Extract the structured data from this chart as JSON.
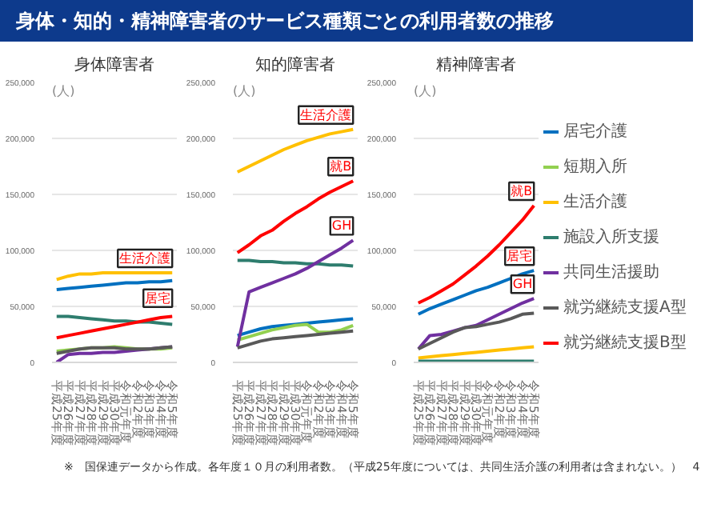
{
  "chart_data": [
    {
      "type": "line",
      "title": "身体障害者",
      "ylabel": "(人)",
      "categories": [
        "平成25年度",
        "平成26年度",
        "平成27年度",
        "平成28年度",
        "平成29年度",
        "平成30年度",
        "令和元年度",
        "令和2年度",
        "令和3年度",
        "令和4年度",
        "令和5年度"
      ],
      "ylim": [
        0,
        250000
      ],
      "yticks": [
        0,
        {
          "value": 50000,
          "label": "50,000"
        },
        {
          "value": 100000,
          "label": "100,000"
        },
        {
          "value": 150000,
          "label": "150,000"
        },
        {
          "value": 200000,
          "label": "200,000"
        },
        {
          "value": 250000,
          "label": "250,000"
        }
      ],
      "grid": "y",
      "series": [
        {
          "color": "#0070c0",
          "values": [
            65000,
            66000,
            67000,
            68000,
            69000,
            70000,
            71000,
            71000,
            72000,
            72000,
            73000
          ]
        },
        {
          "color": "#92d050",
          "values": [
            10000,
            11000,
            12000,
            13000,
            13000,
            14000,
            13000,
            12000,
            12000,
            12000,
            13000
          ]
        },
        {
          "color": "#ffc000",
          "values": [
            74000,
            77000,
            79000,
            79000,
            80000,
            80000,
            80000,
            80000,
            80000,
            80000,
            80000
          ]
        },
        {
          "color": "#2e7d6e",
          "values": [
            41000,
            41000,
            40000,
            39000,
            38000,
            37000,
            37000,
            36000,
            36000,
            35000,
            34000
          ]
        },
        {
          "color": "#7030a0",
          "values": [
            0,
            7000,
            8000,
            8000,
            9000,
            9000,
            10000,
            11000,
            12000,
            13000,
            14000
          ]
        },
        {
          "color": "#595959",
          "values": [
            8000,
            10000,
            12000,
            13000,
            13000,
            13000,
            12000,
            12000,
            12000,
            13000,
            14000
          ]
        },
        {
          "color": "#ff0000",
          "values": [
            22000,
            24000,
            26000,
            28000,
            30000,
            32000,
            34000,
            36000,
            38000,
            40000,
            41000
          ]
        }
      ],
      "annotations": [
        "身体・知的・精神障害者のサービス種類ごとの利用者数の推移",
        {
          "text": "生活介護",
          "x": "令和5年度",
          "y": 80000
        },
        {
          "text": "居宅",
          "x": "令和5年度",
          "y": 73000
        }
      ]
    },
    {
      "type": "line",
      "title": "知的障害者",
      "ylabel": "(人)",
      "categories": [
        "平成25年度",
        "平成26年度",
        "平成27年度",
        "平成28年度",
        "平成29年度",
        "平成30年度",
        "令和元年度",
        "令和2年度",
        "令和3年度",
        "令和4年度",
        "令和5年度"
      ],
      "ylim": [
        0,
        250000
      ],
      "yticks": [
        0,
        {
          "value": 50000,
          "label": "50,000"
        },
        {
          "value": 100000,
          "label": "100,000"
        },
        {
          "value": 150000,
          "label": "150,000"
        },
        {
          "value": 200000,
          "label": "200,000"
        },
        {
          "value": 250000,
          "label": "250,000"
        }
      ],
      "grid": "y",
      "series": [
        {
          "color": "#0070c0",
          "values": [
            24000,
            27000,
            30000,
            32000,
            33000,
            34000,
            35000,
            36000,
            37000,
            38000,
            39000
          ]
        },
        {
          "color": "#92d050",
          "values": [
            20000,
            23000,
            26000,
            29000,
            31000,
            33000,
            34000,
            27000,
            27000,
            29000,
            33000
          ]
        },
        {
          "color": "#ffc000",
          "values": [
            170000,
            175000,
            180000,
            185000,
            190000,
            194000,
            198000,
            201000,
            204000,
            206000,
            208000
          ]
        },
        {
          "color": "#2e7d6e",
          "values": [
            91000,
            91000,
            90000,
            90000,
            89000,
            89000,
            88000,
            88000,
            87000,
            87000,
            86000
          ]
        },
        {
          "color": "#7030a0",
          "values": [
            14000,
            63000,
            67000,
            71000,
            75000,
            79000,
            84000,
            90000,
            96000,
            102000,
            109000
          ]
        },
        {
          "color": "#595959",
          "values": [
            13000,
            16000,
            19000,
            21000,
            22000,
            23000,
            24000,
            25000,
            26000,
            27000,
            28000
          ]
        },
        {
          "color": "#ff0000",
          "values": [
            98000,
            105000,
            113000,
            118000,
            126000,
            133000,
            139000,
            146000,
            152000,
            157000,
            162000
          ]
        }
      ],
      "annotations": [
        {
          "text": "生活介護",
          "x": "令和5年度",
          "y": 208000
        },
        {
          "text": "就B",
          "x": "令和5年度",
          "y": 162000
        },
        {
          "text": "GH",
          "x": "令和5年度",
          "y": 109000
        }
      ]
    },
    {
      "type": "line",
      "title": "精神障害者",
      "ylabel": "(人)",
      "categories": [
        "平成25年度",
        "平成26年度",
        "平成27年度",
        "平成28年度",
        "平成29年度",
        "平成30年度",
        "令和元年度",
        "令和2年度",
        "令和3年度",
        "令和4年度",
        "令和5年度"
      ],
      "ylim": [
        0,
        250000
      ],
      "yticks": [
        0,
        {
          "value": 50000,
          "label": "50,000"
        },
        {
          "value": 100000,
          "label": "100,000"
        },
        {
          "value": 150000,
          "label": "150,000"
        },
        {
          "value": 200000,
          "label": "200,000"
        },
        {
          "value": 250000,
          "label": "250,000"
        }
      ],
      "grid": "y",
      "legend": "right",
      "series": [
        {
          "name": "居宅介護",
          "color": "#0070c0",
          "values": [
            43000,
            48000,
            52000,
            56000,
            60000,
            64000,
            67000,
            71000,
            75000,
            79000,
            82000
          ]
        },
        {
          "name": "短期入所",
          "color": "#92d050",
          "values": [
            null,
            null,
            null,
            null,
            null,
            null,
            null,
            null,
            null,
            null,
            null
          ]
        },
        {
          "name": "生活介護",
          "color": "#ffc000",
          "values": [
            4000,
            5000,
            6000,
            7000,
            8000,
            9000,
            10000,
            11000,
            12000,
            13000,
            14000
          ]
        },
        {
          "name": "施設入所支援",
          "color": "#2e7d6e",
          "values": [
            1000,
            1000,
            1000,
            1000,
            1000,
            1000,
            1000,
            1000,
            1000,
            1000,
            1000
          ]
        },
        {
          "name": "共同生活援助",
          "color": "#7030a0",
          "values": [
            12000,
            24000,
            25000,
            28000,
            31000,
            33000,
            38000,
            43000,
            48000,
            53000,
            57000
          ]
        },
        {
          "name": "就労継続支援A型",
          "color": "#595959",
          "values": [
            12000,
            17000,
            22000,
            27000,
            31000,
            32000,
            34000,
            36000,
            39000,
            43000,
            44000
          ]
        },
        {
          "name": "就労継続支援B型",
          "color": "#ff0000",
          "values": [
            53000,
            58000,
            64000,
            70000,
            78000,
            86000,
            95000,
            105000,
            116000,
            127000,
            140000
          ]
        }
      ],
      "annotations": [
        {
          "text": "就B",
          "x": "令和5年度",
          "y": 140000
        },
        {
          "text": "居宅",
          "x": "令和5年度",
          "y": 82000
        },
        {
          "text": "GH",
          "x": "令和5年度",
          "y": 57000
        },
        "※　国保連データから作成。各年度１０月の利用者数。（平成25年度については、共同生活介護の利用者は含まれない。）",
        "4"
      ]
    }
  ]
}
